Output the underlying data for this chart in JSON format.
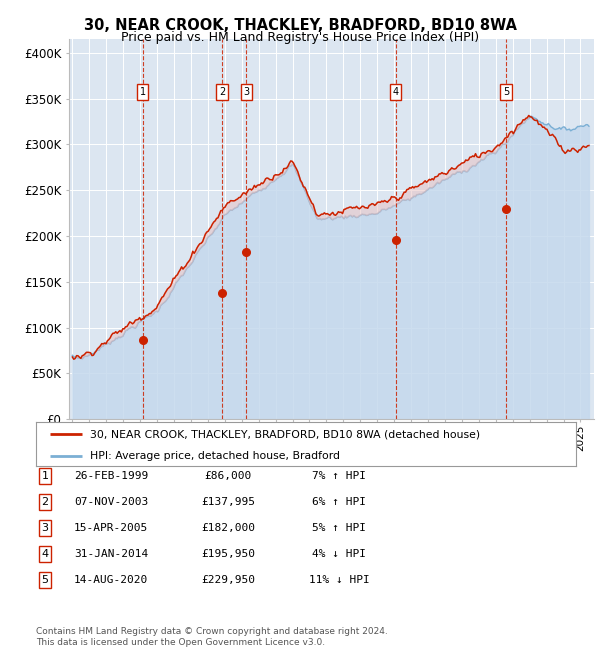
{
  "title": "30, NEAR CROOK, THACKLEY, BRADFORD, BD10 8WA",
  "subtitle": "Price paid vs. HM Land Registry's House Price Index (HPI)",
  "ylabel_ticks": [
    "£0",
    "£50K",
    "£100K",
    "£150K",
    "£200K",
    "£250K",
    "£300K",
    "£350K",
    "£400K"
  ],
  "ytick_values": [
    0,
    50000,
    100000,
    150000,
    200000,
    250000,
    300000,
    350000,
    400000
  ],
  "ylim": [
    0,
    415000
  ],
  "xlim_start": 1994.8,
  "xlim_end": 2025.8,
  "hpi_color": "#7bafd4",
  "hpi_fill_color": "#c5d9ed",
  "price_color": "#cc2200",
  "background_color": "#dce6f1",
  "grid_color": "#ffffff",
  "transactions": [
    {
      "num": 1,
      "year": 1999.15,
      "price": 86000,
      "label": "1"
    },
    {
      "num": 2,
      "year": 2003.85,
      "price": 137995,
      "label": "2"
    },
    {
      "num": 3,
      "year": 2005.28,
      "price": 182000,
      "label": "3"
    },
    {
      "num": 4,
      "year": 2014.08,
      "price": 195950,
      "label": "4"
    },
    {
      "num": 5,
      "year": 2020.62,
      "price": 229950,
      "label": "5"
    }
  ],
  "legend_price_label": "30, NEAR CROOK, THACKLEY, BRADFORD, BD10 8WA (detached house)",
  "legend_hpi_label": "HPI: Average price, detached house, Bradford",
  "table_rows": [
    {
      "num": "1",
      "date": "26-FEB-1999",
      "price": "£86,000",
      "change": "7% ↑ HPI"
    },
    {
      "num": "2",
      "date": "07-NOV-2003",
      "price": "£137,995",
      "change": "6% ↑ HPI"
    },
    {
      "num": "3",
      "date": "15-APR-2005",
      "price": "£182,000",
      "change": "5% ↑ HPI"
    },
    {
      "num": "4",
      "date": "31-JAN-2014",
      "price": "£195,950",
      "change": "4% ↓ HPI"
    },
    {
      "num": "5",
      "date": "14-AUG-2020",
      "price": "£229,950",
      "change": "11% ↓ HPI"
    }
  ],
  "footer": "Contains HM Land Registry data © Crown copyright and database right 2024.\nThis data is licensed under the Open Government Licence v3.0."
}
